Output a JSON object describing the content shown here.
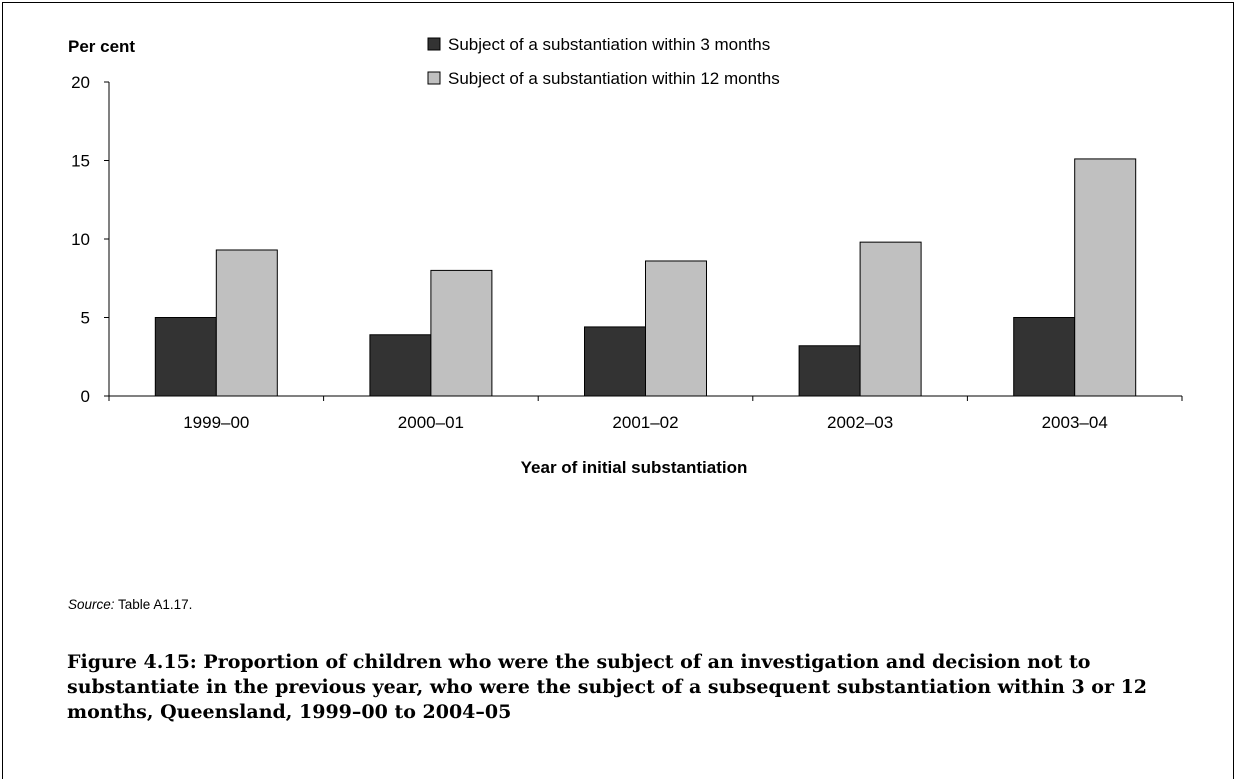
{
  "chart_data": {
    "type": "bar",
    "ylabel": "Per cent",
    "xlabel": "Year of initial substantiation",
    "ylim": [
      0,
      20
    ],
    "yticks": [
      0,
      5,
      10,
      15,
      20
    ],
    "categories": [
      "1999–00",
      "2000–01",
      "2001–02",
      "2002–03",
      "2003–04"
    ],
    "series": [
      {
        "name": "Subject of a substantiation within 3 months",
        "color": "#333333",
        "values": [
          5.0,
          3.9,
          4.4,
          3.2,
          5.0
        ]
      },
      {
        "name": "Subject of a substantiation within 12 months",
        "color": "#c0c0c0",
        "values": [
          9.3,
          8.0,
          8.6,
          9.8,
          15.1
        ]
      }
    ],
    "legend_position": "top-center",
    "grid": false
  },
  "source": {
    "label": "Source:",
    "text": " Table A1.17."
  },
  "caption": "Figure 4.15: Proportion of children who were the subject of an investigation and decision not to substantiate in the previous year, who were the subject of a subsequent substantiation within 3 or 12 months, Queensland, 1999–00 to 2004–05"
}
